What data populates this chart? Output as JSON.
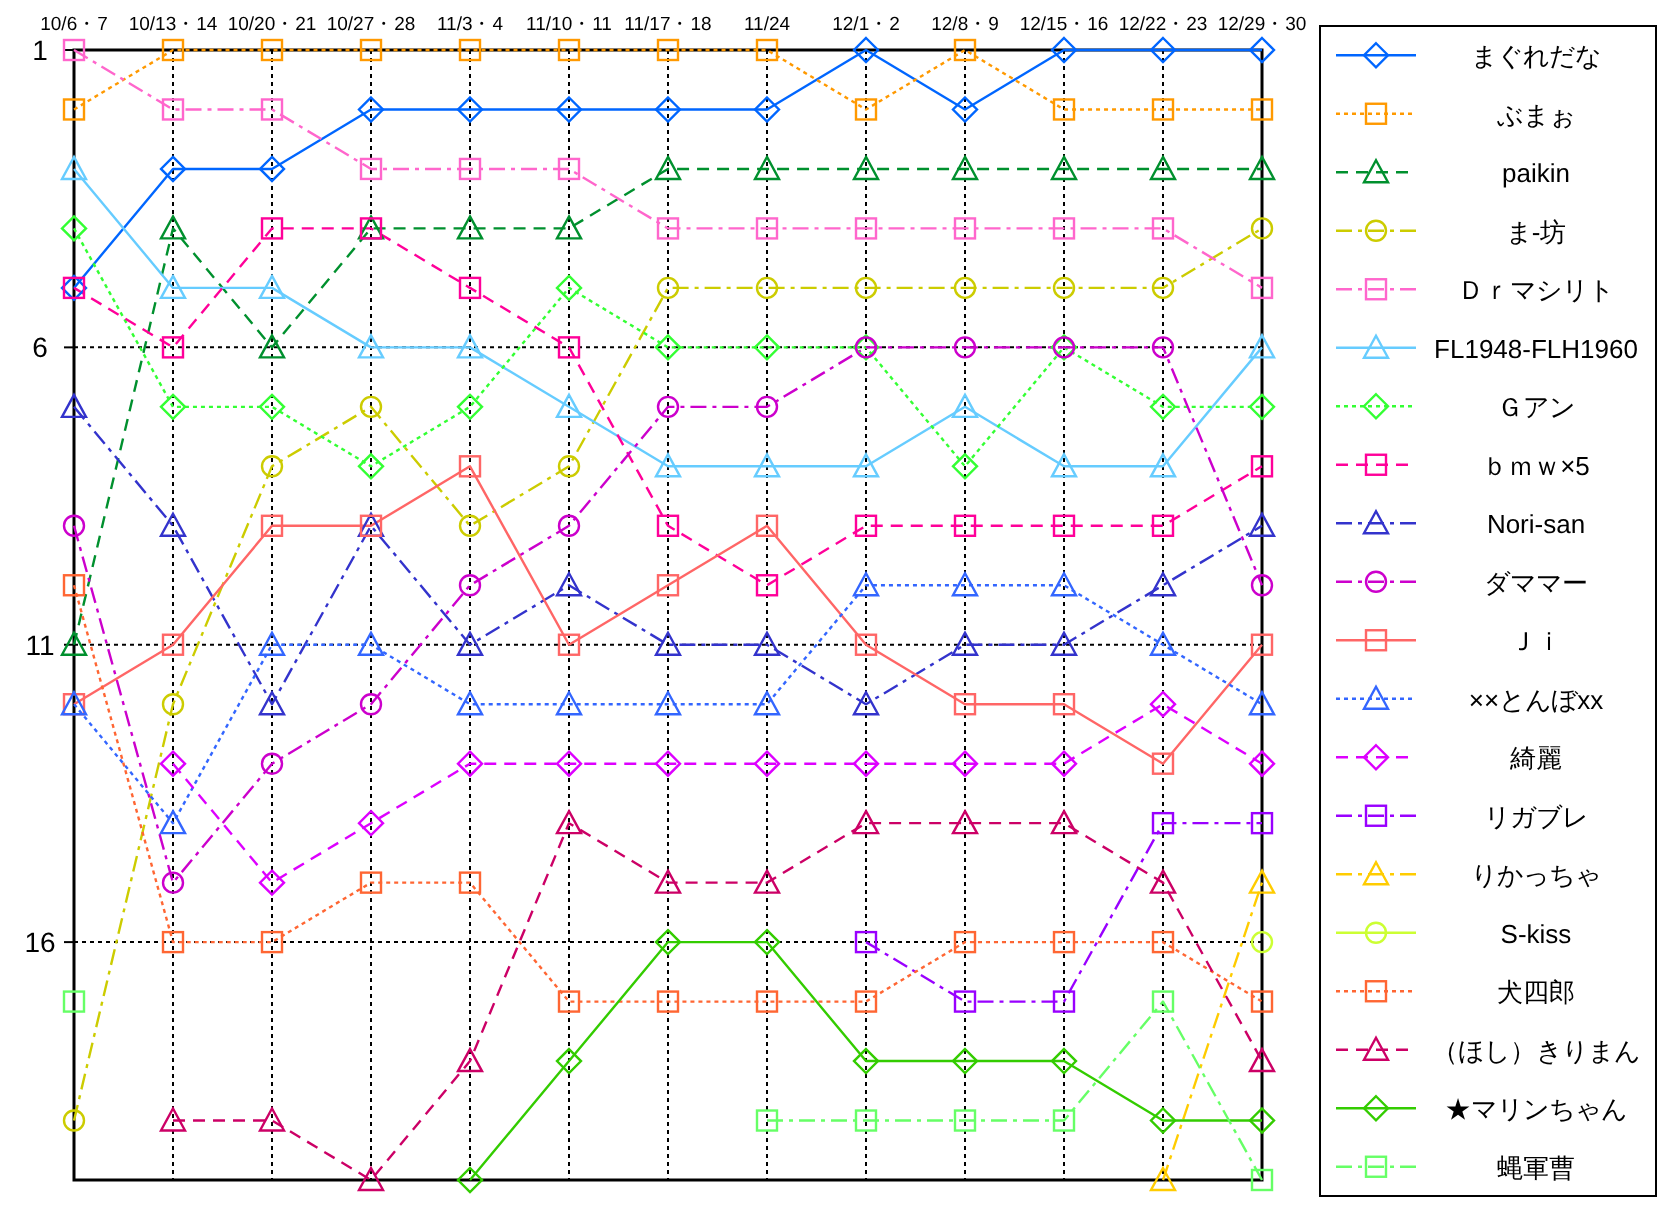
{
  "chart_data": {
    "type": "line",
    "categories": [
      "10/6・7",
      "10/13・14",
      "10/20・21",
      "10/27・28",
      "11/3・4",
      "11/10・11",
      "11/17・18",
      "11/24",
      "12/1・2",
      "12/8・9",
      "12/15・16",
      "12/22・23",
      "12/29・30"
    ],
    "ylim": [
      20,
      1
    ],
    "yticks": [
      1,
      6,
      11,
      16
    ],
    "grid": true,
    "legend": "right",
    "series": [
      {
        "name": "まぐれだな",
        "color": "#0066ff",
        "marker": "diamond",
        "line_style": "solid",
        "values": [
          5,
          3,
          3,
          2,
          2,
          2,
          2,
          2,
          1,
          2,
          1,
          1,
          1
        ]
      },
      {
        "name": "ぶまぉ",
        "color": "#ff9900",
        "marker": "square",
        "line_style": "dotted",
        "values": [
          2,
          1,
          1,
          1,
          1,
          1,
          1,
          1,
          2,
          1,
          2,
          2,
          2
        ]
      },
      {
        "name": "paikin",
        "color": "#00902e",
        "marker": "triangle",
        "line_style": "dashed",
        "values": [
          11,
          4,
          6,
          4,
          4,
          4,
          3,
          3,
          3,
          3,
          3,
          3,
          3
        ]
      },
      {
        "name": "ま-坊",
        "color": "#cccc00",
        "marker": "circle",
        "line_style": "dashdot",
        "values": [
          19,
          12,
          8,
          7,
          9,
          8,
          5,
          5,
          5,
          5,
          5,
          5,
          4
        ]
      },
      {
        "name": "Ｄｒマシリト",
        "color": "#ff66cc",
        "marker": "square",
        "line_style": "dashdot",
        "values": [
          1,
          2,
          2,
          3,
          3,
          3,
          4,
          4,
          4,
          4,
          4,
          4,
          5
        ]
      },
      {
        "name": "FL1948-FLH1960",
        "color": "#66ccff",
        "marker": "triangle",
        "line_style": "solid",
        "values": [
          3,
          5,
          5,
          6,
          6,
          7,
          8,
          8,
          8,
          7,
          8,
          8,
          6
        ]
      },
      {
        "name": "Ｇアン",
        "color": "#33ff33",
        "marker": "diamond",
        "line_style": "dotted",
        "values": [
          4,
          7,
          7,
          8,
          7,
          5,
          6,
          6,
          6,
          8,
          6,
          7,
          7
        ]
      },
      {
        "name": "ｂｍｗ×5",
        "color": "#ff0099",
        "marker": "square",
        "line_style": "dashed",
        "values": [
          5,
          6,
          4,
          4,
          5,
          6,
          9,
          10,
          9,
          9,
          9,
          9,
          8
        ]
      },
      {
        "name": "Nori-san",
        "color": "#3333cc",
        "marker": "triangle",
        "line_style": "dashdot",
        "values": [
          7,
          9,
          12,
          9,
          11,
          10,
          11,
          11,
          12,
          11,
          11,
          10,
          9
        ]
      },
      {
        "name": "ダママー",
        "color": "#cc00cc",
        "marker": "circle",
        "line_style": "dashdot",
        "values": [
          9,
          15,
          13,
          12,
          10,
          9,
          7,
          7,
          6,
          6,
          6,
          6,
          10
        ]
      },
      {
        "name": "Ｊｉ",
        "color": "#ff6666",
        "marker": "square",
        "line_style": "solid",
        "values": [
          12,
          11,
          9,
          9,
          8,
          11,
          10,
          9,
          11,
          12,
          12,
          13,
          11
        ]
      },
      {
        "name": "××とんぼxx",
        "color": "#3366ff",
        "marker": "triangle",
        "line_style": "dotted",
        "values": [
          12,
          14,
          11,
          11,
          12,
          12,
          12,
          12,
          10,
          10,
          10,
          11,
          12
        ]
      },
      {
        "name": "綺麗",
        "color": "#dd00ff",
        "marker": "diamond",
        "line_style": "dashed",
        "values": [
          null,
          13,
          15,
          14,
          13,
          13,
          13,
          13,
          13,
          13,
          13,
          12,
          13
        ]
      },
      {
        "name": "リガブレ",
        "color": "#9900ff",
        "marker": "square",
        "line_style": "dashdot",
        "values": [
          null,
          null,
          null,
          null,
          null,
          null,
          null,
          null,
          16,
          17,
          17,
          14,
          14
        ]
      },
      {
        "name": "りかっちゃ",
        "color": "#ffcc00",
        "marker": "triangle",
        "line_style": "dashdot",
        "values": [
          null,
          null,
          null,
          null,
          null,
          null,
          null,
          null,
          null,
          null,
          null,
          20,
          15
        ]
      },
      {
        "name": "S-kiss",
        "color": "#ccff33",
        "marker": "circle",
        "line_style": "solid",
        "values": [
          null,
          null,
          null,
          null,
          null,
          null,
          null,
          null,
          null,
          null,
          null,
          null,
          16
        ]
      },
      {
        "name": "犬四郎",
        "color": "#ff6633",
        "marker": "square",
        "line_style": "dotted",
        "values": [
          10,
          16,
          16,
          15,
          15,
          17,
          17,
          17,
          17,
          16,
          16,
          16,
          17
        ]
      },
      {
        "name": "（ほし）きりまん",
        "color": "#cc0066",
        "marker": "triangle",
        "line_style": "dashed",
        "values": [
          null,
          19,
          19,
          20,
          18,
          14,
          15,
          15,
          14,
          14,
          14,
          15,
          18
        ]
      },
      {
        "name": "★マリンちゃん",
        "color": "#33cc00",
        "marker": "diamond",
        "line_style": "solid",
        "values": [
          null,
          null,
          null,
          null,
          20,
          18,
          16,
          16,
          18,
          18,
          18,
          19,
          19
        ]
      },
      {
        "name": "蝿軍曹",
        "color": "#66ff66",
        "marker": "square",
        "line_style": "dashdot",
        "values": [
          17,
          null,
          null,
          null,
          null,
          null,
          null,
          19,
          19,
          19,
          19,
          17,
          20
        ]
      }
    ]
  }
}
